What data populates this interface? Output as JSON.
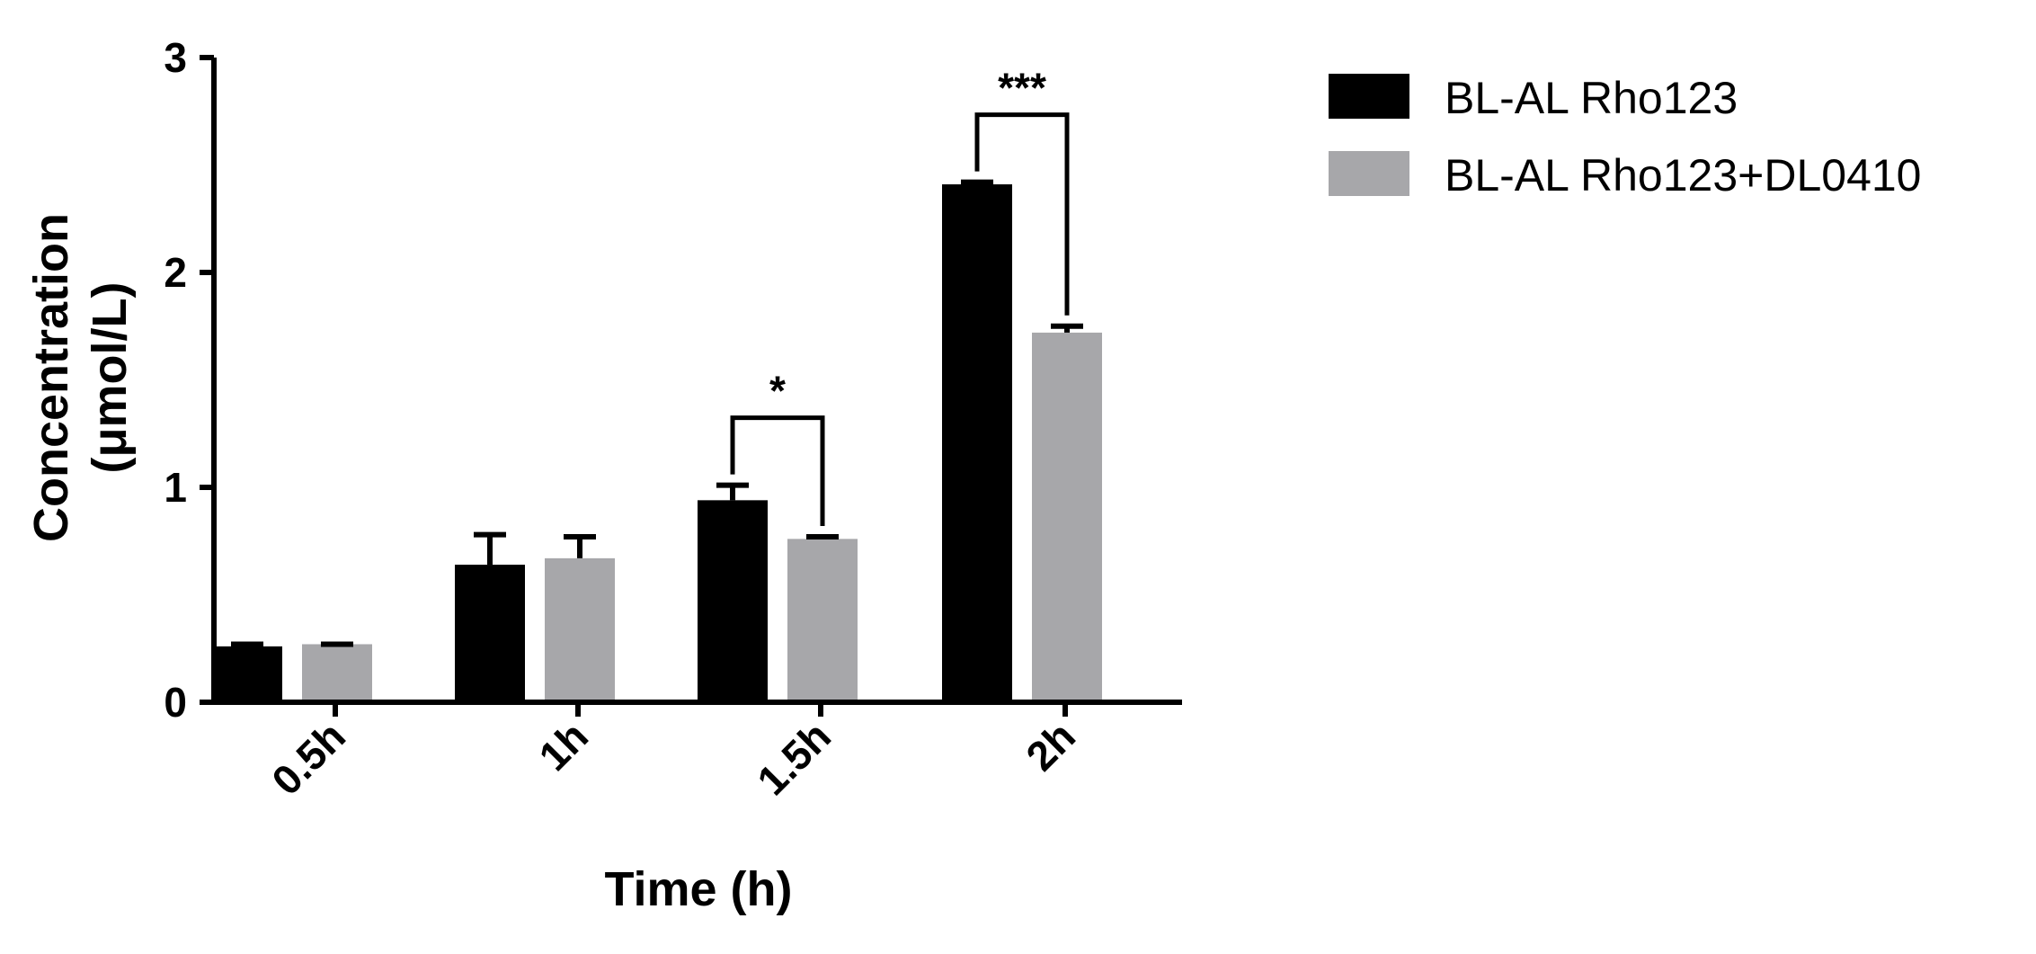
{
  "chart_data": {
    "type": "bar",
    "categories": [
      "0.5h",
      "1h",
      "1.5h",
      "2h"
    ],
    "series": [
      {
        "name": "BL-AL Rho123",
        "values": [
          0.26,
          0.64,
          0.94,
          2.41
        ],
        "errors": [
          0.01,
          0.14,
          0.07,
          0.01
        ],
        "color": "#000000"
      },
      {
        "name": "BL-AL Rho123+DL0410",
        "values": [
          0.27,
          0.67,
          0.76,
          1.72
        ],
        "errors": [
          0.0,
          0.1,
          0.01,
          0.03
        ],
        "color": "#a7a7aa"
      }
    ],
    "ylim": [
      0,
      3
    ],
    "yticks": [
      "0",
      "1",
      "2",
      "3"
    ],
    "ylabel_line1": "Concentration",
    "ylabel_line2": "(μmol/L)",
    "xlabel": "Time (h)",
    "legend_position": "top-right",
    "significance": [
      {
        "category": "1.5h",
        "label": "*"
      },
      {
        "category": "2h",
        "label": "***"
      }
    ]
  }
}
